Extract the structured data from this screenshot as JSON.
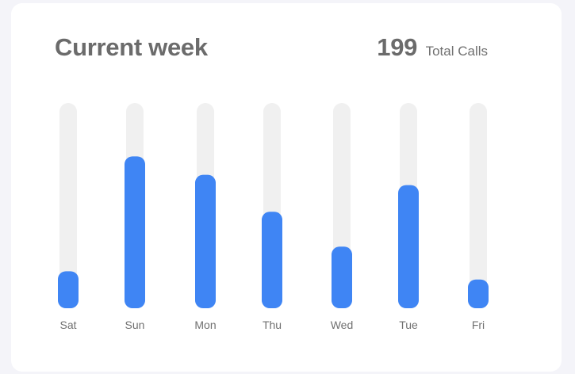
{
  "header": {
    "title": "Current week",
    "total_value": "199",
    "total_label": "Total Calls"
  },
  "colors": {
    "bar": "#3f85f4",
    "track": "#f0f0f0"
  },
  "chart_data": {
    "type": "bar",
    "categories": [
      "Sat",
      "Sun",
      "Mon",
      "Thu",
      "Wed",
      "Tue",
      "Fri"
    ],
    "values": [
      0.18,
      0.74,
      0.65,
      0.47,
      0.3,
      0.6,
      0.14
    ],
    "ylim": [
      0,
      1
    ],
    "grid": false,
    "legend": "none"
  }
}
